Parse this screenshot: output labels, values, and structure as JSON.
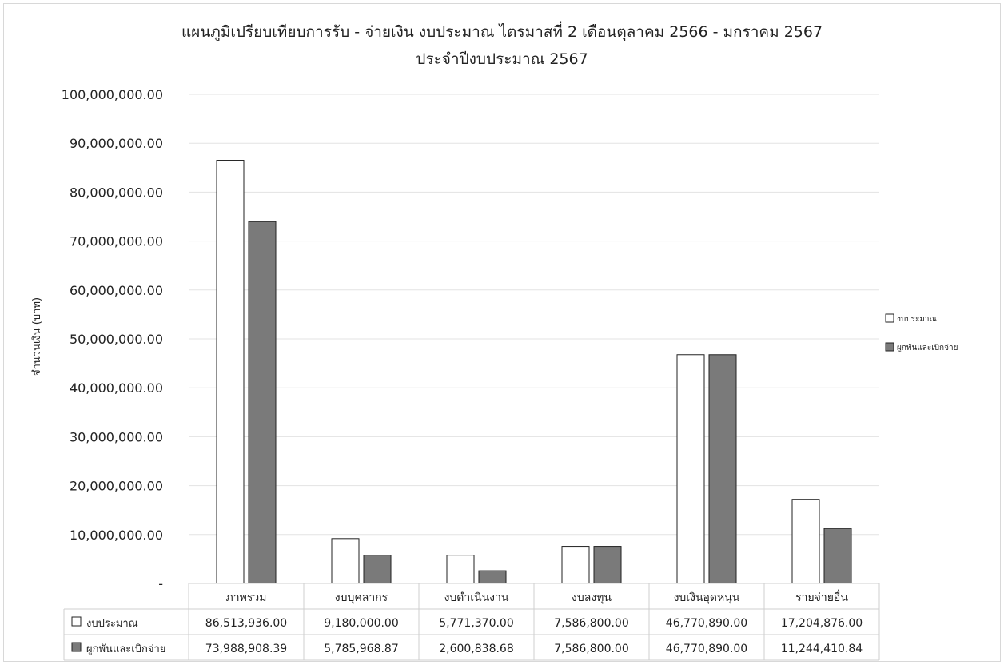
{
  "chart_data": {
    "type": "bar",
    "title": "แผนภูมิเปรียบเทียบการรับ - จ่ายเงิน งบประมาณ ไตรมาสที่ 2 เดือนตุลาคม 2566 - มกราคม 2567",
    "subtitle": "ประจำปีงบประมาณ 2567",
    "ylabel": "จำนวนเงิน (บาท)",
    "ylim": [
      0,
      100000000
    ],
    "yticks": [
      0,
      10000000,
      20000000,
      30000000,
      40000000,
      50000000,
      60000000,
      70000000,
      80000000,
      90000000,
      100000000
    ],
    "ytick_labels": [
      "-",
      "10,000,000.00",
      "20,000,000.00",
      "30,000,000.00",
      "40,000,000.00",
      "50,000,000.00",
      "60,000,000.00",
      "70,000,000.00",
      "80,000,000.00",
      "90,000,000.00",
      "100,000,000.00"
    ],
    "grid": true,
    "legend_position": "right",
    "categories": [
      "ภาพรวม",
      "งบบุคลากร",
      "งบดำเนินงาน",
      "งบลงทุน",
      "งบเงินอุดหนุน",
      "รายจ่ายอื่น"
    ],
    "series": [
      {
        "name": "งบประมาณ",
        "color": "#ffffff",
        "values": [
          86513936.0,
          9180000.0,
          5771370.0,
          7586800.0,
          46770890.0,
          17204876.0
        ],
        "value_labels": [
          "86,513,936.00",
          "9,180,000.00",
          "5,771,370.00",
          "7,586,800.00",
          "46,770,890.00",
          "17,204,876.00"
        ]
      },
      {
        "name": "ผูกพันและเบิกจ่าย",
        "color": "#7a7a7a",
        "values": [
          73988908.39,
          5785968.87,
          2600838.68,
          7586800.0,
          46770890.0,
          11244410.84
        ],
        "value_labels": [
          "73,988,908.39",
          "5,785,968.87",
          "2,600,838.68",
          "7,586,800.00",
          "46,770,890.00",
          "11,244,410.84"
        ]
      }
    ]
  }
}
